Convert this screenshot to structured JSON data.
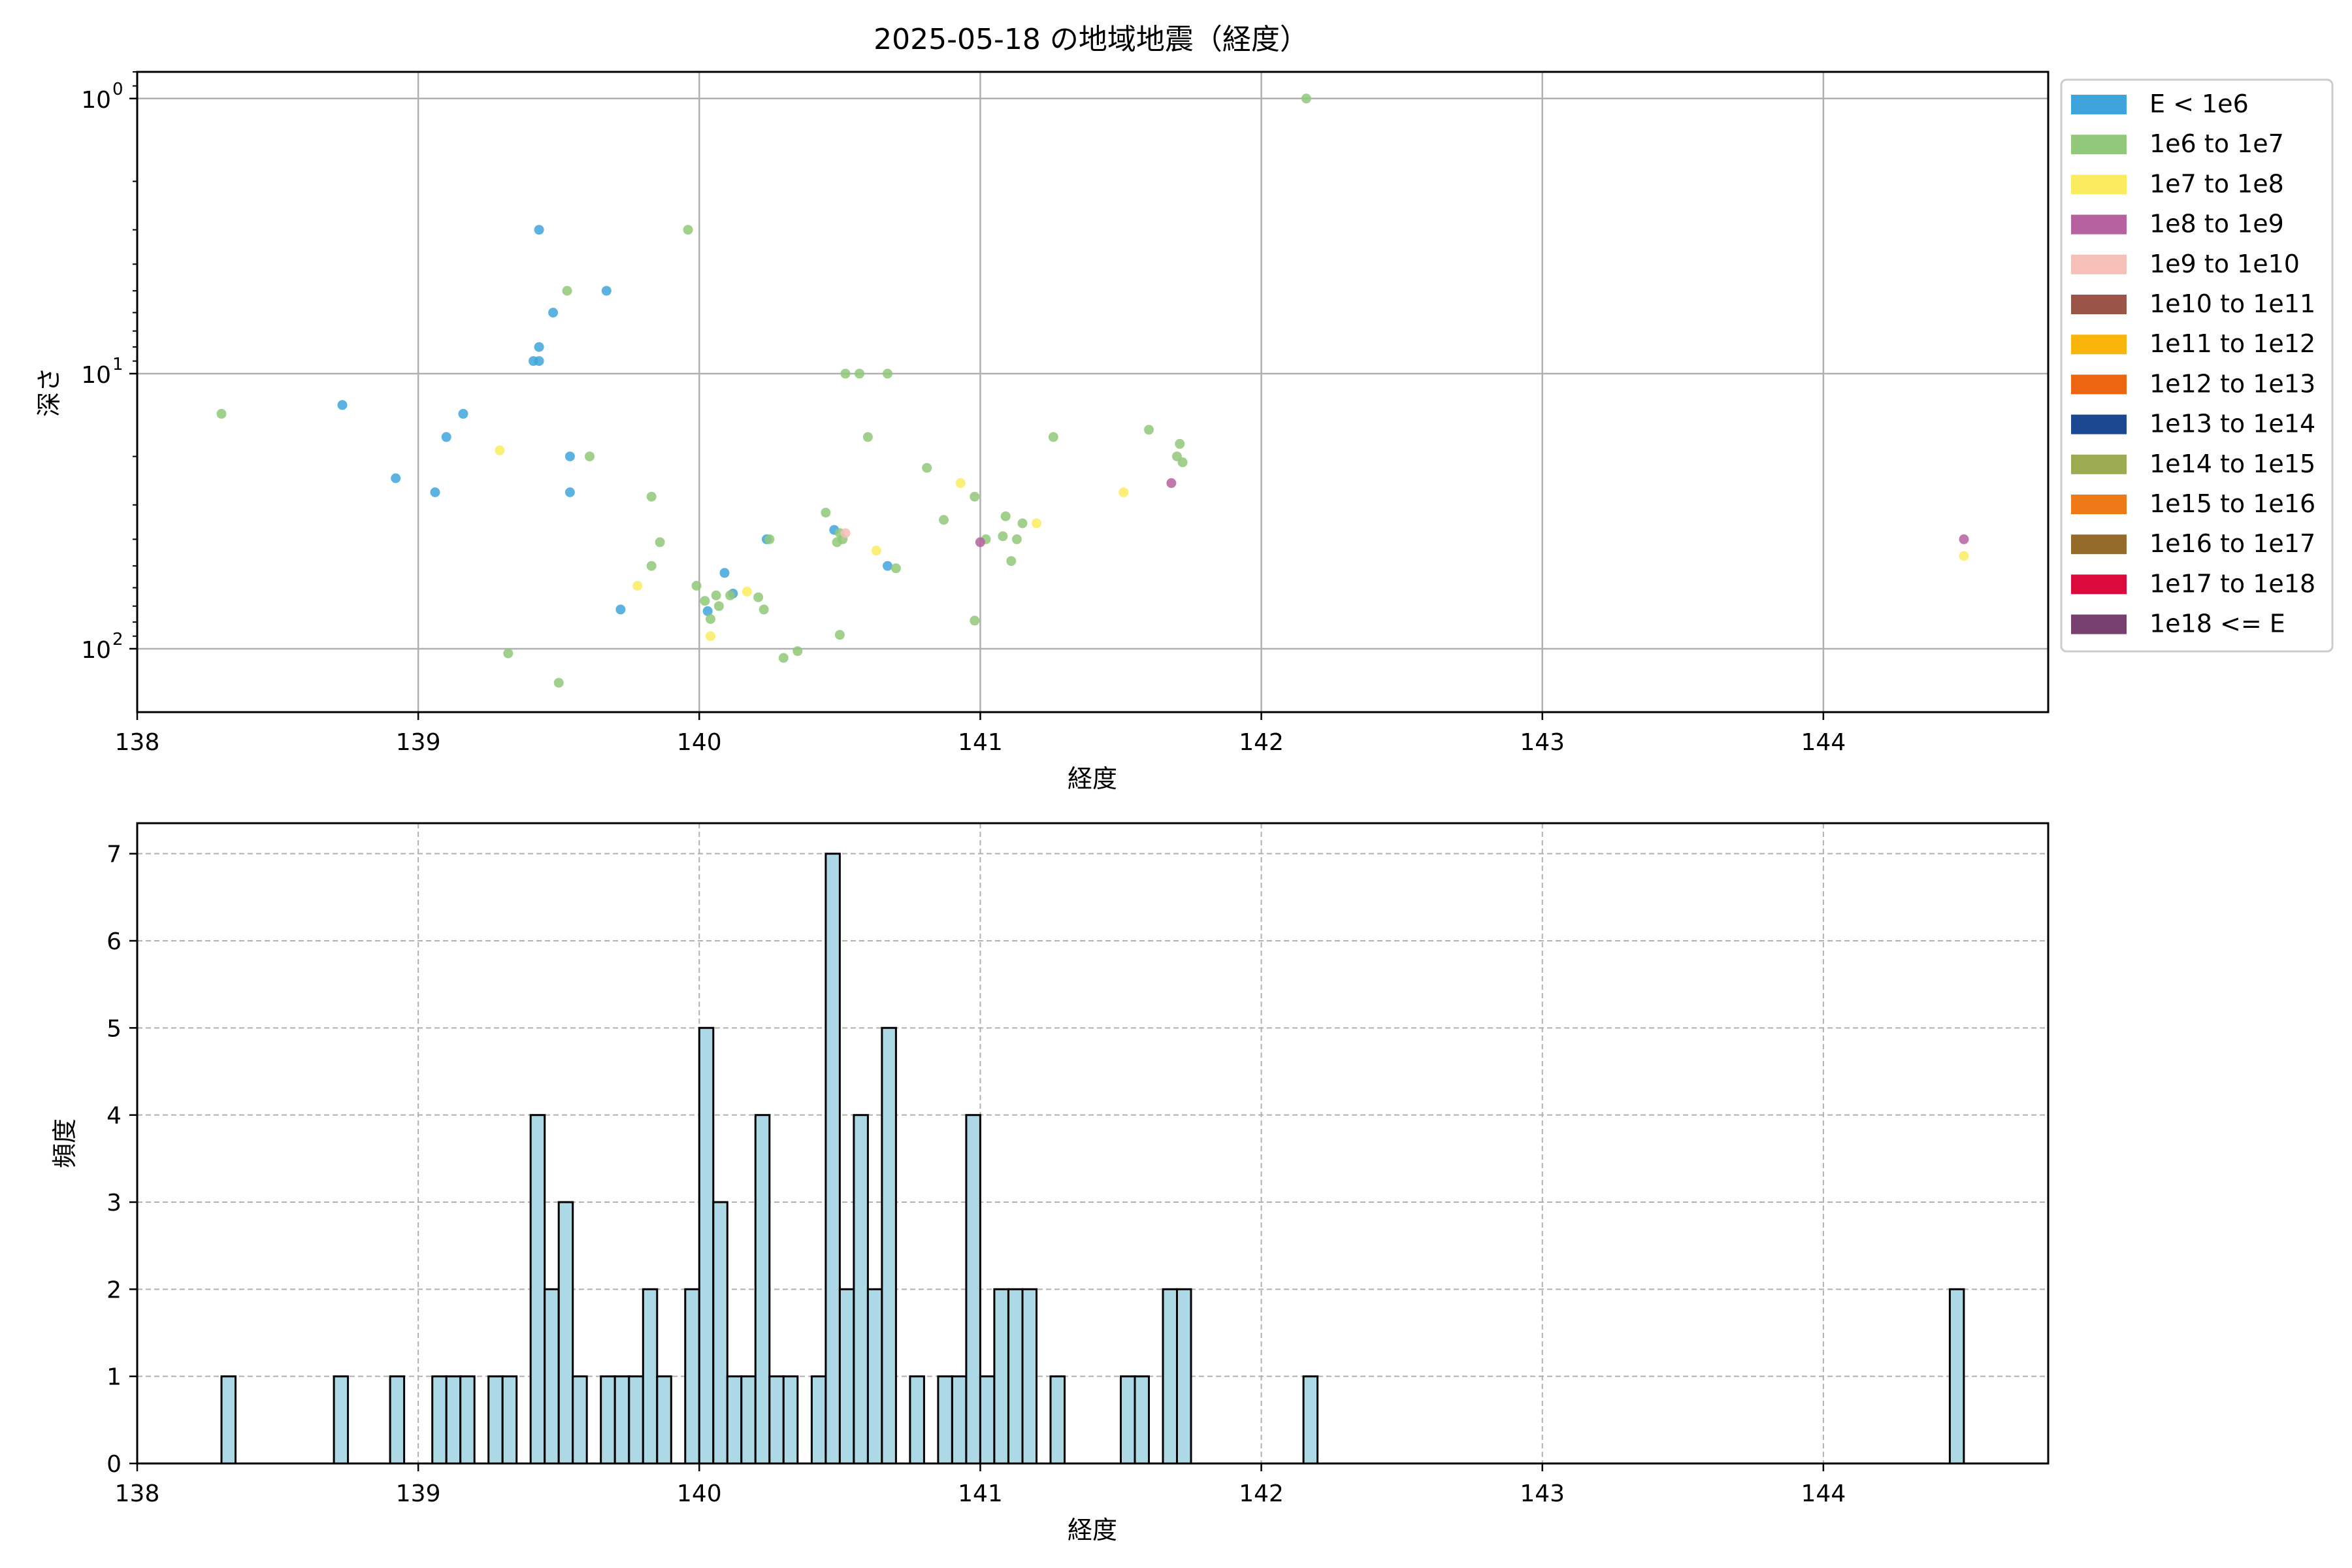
{
  "chart_data": [
    {
      "type": "scatter",
      "title": "2025-05-18 の地域地震（経度）",
      "xlabel": "経度",
      "ylabel": "深さ",
      "xlim": [
        138,
        144.8
      ],
      "ylim": [
        170,
        0.8
      ],
      "yscale": "log",
      "y_inverted": true,
      "grid": true,
      "xticks": [
        "138",
        "139",
        "140",
        "141",
        "142",
        "143",
        "144"
      ],
      "yticks": [
        {
          "value": 1,
          "label": "10",
          "exp": "0"
        },
        {
          "value": 10,
          "label": "10",
          "exp": "1"
        },
        {
          "value": 100,
          "label": "10",
          "exp": "2"
        }
      ],
      "legend_placement": "outside-right",
      "legend": [
        {
          "label": "E < 1e6",
          "color": "#3fa4dc"
        },
        {
          "label": "1e6 to 1e7",
          "color": "#91c879"
        },
        {
          "label": "1e7 to 1e8",
          "color": "#fbec5f"
        },
        {
          "label": "1e8 to 1e9",
          "color": "#b5629f"
        },
        {
          "label": "1e9 to 1e10",
          "color": "#f4c0b8"
        },
        {
          "label": "1e10 to 1e11",
          "color": "#9b5448"
        },
        {
          "label": "1e11 to 1e12",
          "color": "#f9b50b"
        },
        {
          "label": "1e12 to 1e13",
          "color": "#ec6510"
        },
        {
          "label": "1e13 to 1e14",
          "color": "#1c4892"
        },
        {
          "label": "1e14 to 1e15",
          "color": "#9cab52"
        },
        {
          "label": "1e15 to 1e16",
          "color": "#ed7a16"
        },
        {
          "label": "1e16 to 1e17",
          "color": "#956b2b"
        },
        {
          "label": "1e17 to 1e18",
          "color": "#db0a3c"
        },
        {
          "label": "1e18 <= E",
          "color": "#78406f"
        }
      ],
      "series": [
        {
          "color": "#3fa4dc",
          "points": [
            [
              139.43,
              3.0
            ],
            [
              139.67,
              5.0
            ],
            [
              139.48,
              6.0
            ],
            [
              139.43,
              8.0
            ],
            [
              139.41,
              9.0
            ],
            [
              139.43,
              9.0
            ],
            [
              138.73,
              13.0
            ],
            [
              139.16,
              14.0
            ],
            [
              139.1,
              17.0
            ],
            [
              139.54,
              20.0
            ],
            [
              138.92,
              24.0
            ],
            [
              139.06,
              27.0
            ],
            [
              139.54,
              27.0
            ],
            [
              140.48,
              37.0
            ],
            [
              140.24,
              40.0
            ],
            [
              140.67,
              50.0
            ],
            [
              140.09,
              53.0
            ],
            [
              140.12,
              63.0
            ],
            [
              139.72,
              72.0
            ],
            [
              140.03,
              73.0
            ]
          ]
        },
        {
          "color": "#91c879",
          "points": [
            [
              142.16,
              1.0
            ],
            [
              139.96,
              3.0
            ],
            [
              139.53,
              5.0
            ],
            [
              140.52,
              10.0
            ],
            [
              140.57,
              10.0
            ],
            [
              140.67,
              10.0
            ],
            [
              138.3,
              14.0
            ],
            [
              141.6,
              16.0
            ],
            [
              140.6,
              17.0
            ],
            [
              141.26,
              17.0
            ],
            [
              141.71,
              18.0
            ],
            [
              139.61,
              20.0
            ],
            [
              141.7,
              20.0
            ],
            [
              141.72,
              21.0
            ],
            [
              140.81,
              22.0
            ],
            [
              139.83,
              28.0
            ],
            [
              140.98,
              28.0
            ],
            [
              140.45,
              32.0
            ],
            [
              141.09,
              33.0
            ],
            [
              140.87,
              34.0
            ],
            [
              141.15,
              35.0
            ],
            [
              140.5,
              38.0
            ],
            [
              141.08,
              39.0
            ],
            [
              140.25,
              40.0
            ],
            [
              141.13,
              40.0
            ],
            [
              140.51,
              40.0
            ],
            [
              140.49,
              41.0
            ],
            [
              141.02,
              40.0
            ],
            [
              139.86,
              41.0
            ],
            [
              141.11,
              48.0
            ],
            [
              139.83,
              50.0
            ],
            [
              140.7,
              51.0
            ],
            [
              139.99,
              59.0
            ],
            [
              140.06,
              64.0
            ],
            [
              140.11,
              64.0
            ],
            [
              140.21,
              65.0
            ],
            [
              140.02,
              67.0
            ],
            [
              140.07,
              70.0
            ],
            [
              140.23,
              72.0
            ],
            [
              140.04,
              78.0
            ],
            [
              140.98,
              79.0
            ],
            [
              140.5,
              89.0
            ],
            [
              140.35,
              102.0
            ],
            [
              139.32,
              104.0
            ],
            [
              140.3,
              108.0
            ],
            [
              139.5,
              133.0
            ]
          ]
        },
        {
          "color": "#fbec5f",
          "points": [
            [
              139.29,
              19.0
            ],
            [
              140.93,
              25.0
            ],
            [
              141.51,
              27.0
            ],
            [
              141.2,
              35.0
            ],
            [
              140.63,
              44.0
            ],
            [
              144.5,
              46.0
            ],
            [
              139.78,
              59.0
            ],
            [
              140.17,
              62.0
            ],
            [
              140.04,
              90.0
            ]
          ]
        },
        {
          "color": "#b5629f",
          "points": [
            [
              141.68,
              25.0
            ],
            [
              141.0,
              41.0
            ],
            [
              144.5,
              40.0
            ]
          ]
        },
        {
          "color": "#f4c0b8",
          "points": [
            [
              140.52,
              38.0
            ]
          ]
        }
      ]
    },
    {
      "type": "bar",
      "title": "",
      "xlabel": "経度",
      "ylabel": "頻度",
      "xlim": [
        138,
        144.8
      ],
      "ylim": [
        0,
        7.35
      ],
      "bin_width": 0.05,
      "grid": true,
      "xticks": [
        "138",
        "139",
        "140",
        "141",
        "142",
        "143",
        "144"
      ],
      "yticks": [
        "0",
        "1",
        "2",
        "3",
        "4",
        "5",
        "6",
        "7"
      ],
      "bar_color": "#add8e6",
      "bins": [
        [
          138.3,
          1
        ],
        [
          138.7,
          1
        ],
        [
          138.9,
          1
        ],
        [
          139.05,
          1
        ],
        [
          139.1,
          1
        ],
        [
          139.15,
          1
        ],
        [
          139.25,
          1
        ],
        [
          139.3,
          1
        ],
        [
          139.4,
          4
        ],
        [
          139.45,
          2
        ],
        [
          139.5,
          3
        ],
        [
          139.55,
          1
        ],
        [
          139.65,
          1
        ],
        [
          139.7,
          1
        ],
        [
          139.75,
          1
        ],
        [
          139.8,
          2
        ],
        [
          139.85,
          1
        ],
        [
          139.95,
          2
        ],
        [
          140.0,
          5
        ],
        [
          140.05,
          3
        ],
        [
          140.1,
          1
        ],
        [
          140.15,
          1
        ],
        [
          140.2,
          4
        ],
        [
          140.25,
          1
        ],
        [
          140.3,
          1
        ],
        [
          140.4,
          1
        ],
        [
          140.45,
          7
        ],
        [
          140.5,
          2
        ],
        [
          140.55,
          4
        ],
        [
          140.6,
          2
        ],
        [
          140.65,
          5
        ],
        [
          140.75,
          1
        ],
        [
          140.85,
          1
        ],
        [
          140.9,
          1
        ],
        [
          140.95,
          4
        ],
        [
          141.0,
          1
        ],
        [
          141.05,
          2
        ],
        [
          141.1,
          2
        ],
        [
          141.15,
          2
        ],
        [
          141.25,
          1
        ],
        [
          141.5,
          1
        ],
        [
          141.55,
          1
        ],
        [
          141.65,
          2
        ],
        [
          141.7,
          2
        ],
        [
          142.15,
          1
        ],
        [
          144.45,
          2
        ]
      ]
    }
  ]
}
